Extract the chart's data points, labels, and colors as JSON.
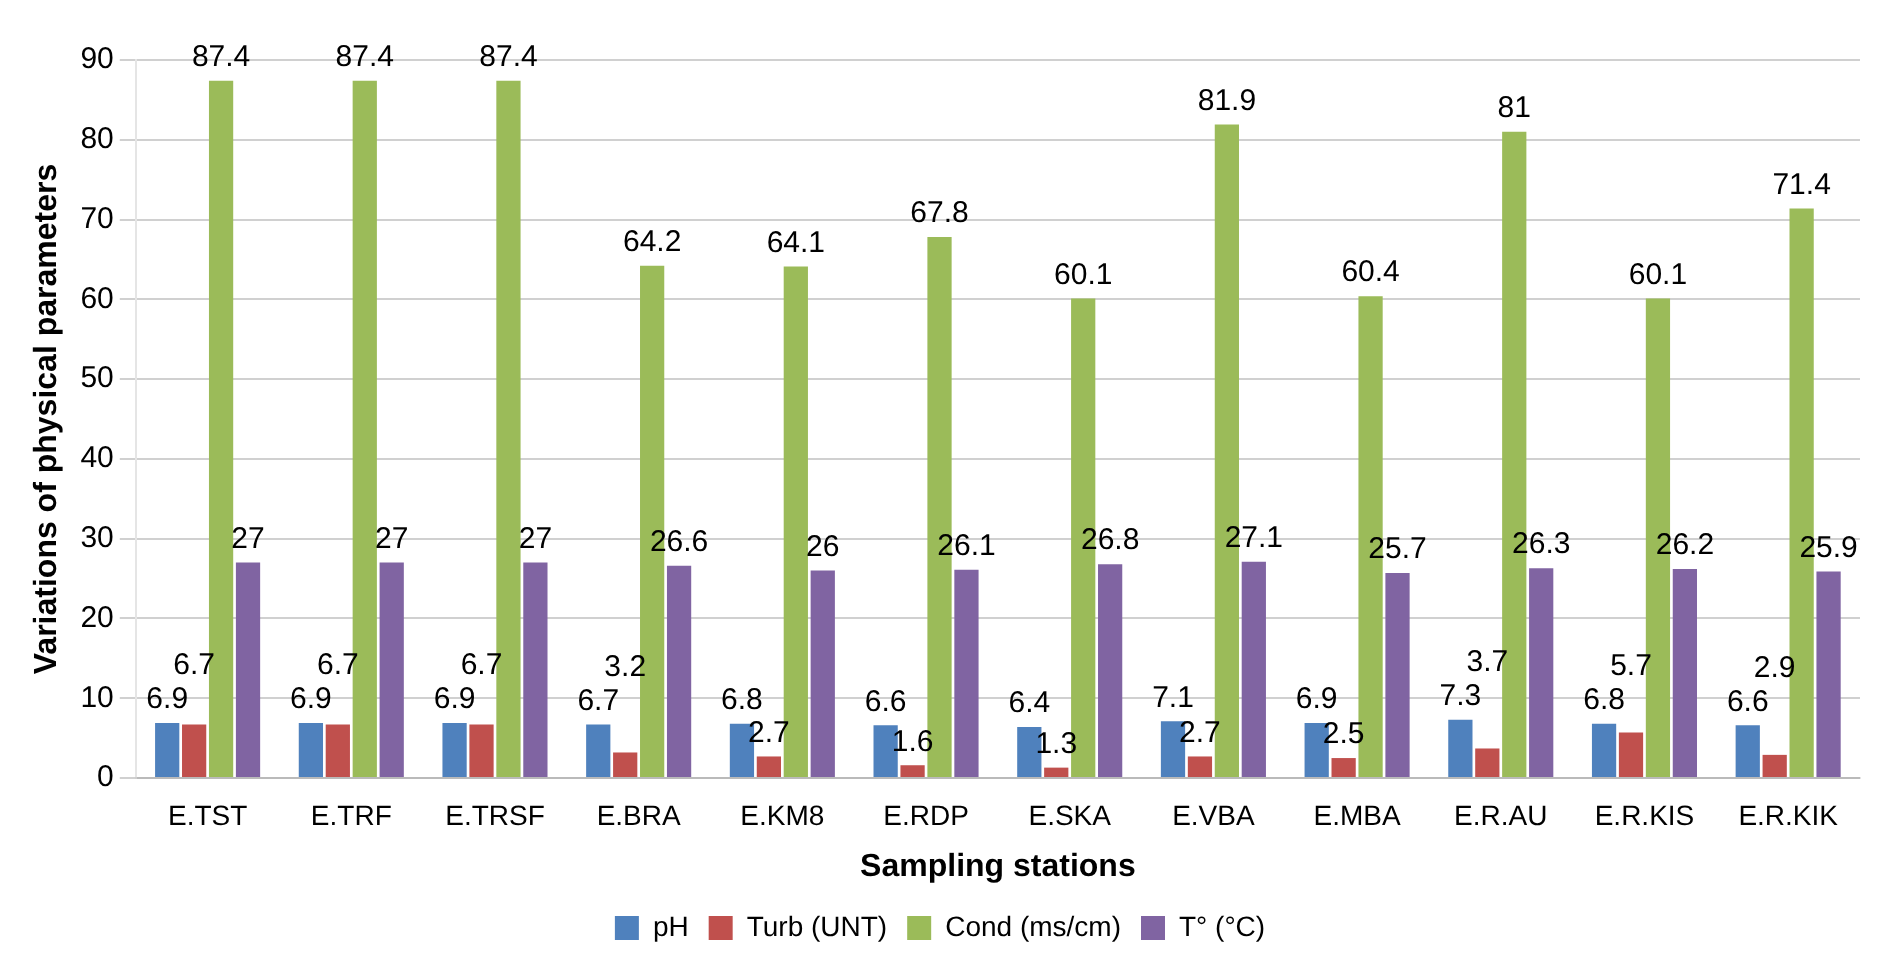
{
  "chart_data": {
    "type": "bar",
    "xlabel": "Sampling stations",
    "ylabel": "Variations of physical parameters",
    "categories": [
      "E.TST",
      "E.TRF",
      "E.TRSF",
      "E.BRA",
      "E.KM8",
      "E.RDP",
      "E.SKA",
      "E.VBA",
      "E.MBA",
      "E.R.AU",
      "E.R.KIS",
      "E.R.KIK"
    ],
    "series": [
      {
        "name": "pH",
        "color": "#4f81bd",
        "values": [
          6.9,
          6.9,
          6.9,
          6.7,
          6.8,
          6.6,
          6.4,
          7.1,
          6.9,
          7.3,
          6.8,
          6.6
        ]
      },
      {
        "name": "Turb (UNT)",
        "color": "#c0504d",
        "values": [
          6.7,
          6.7,
          6.7,
          3.2,
          2.7,
          1.6,
          1.3,
          2.7,
          2.5,
          3.7,
          5.7,
          2.9
        ]
      },
      {
        "name": "Cond (ms/cm)",
        "color": "#9bbb59",
        "values": [
          87.4,
          87.4,
          87.4,
          64.2,
          64.1,
          67.8,
          60.1,
          81.9,
          60.4,
          81,
          60.1,
          71.4
        ]
      },
      {
        "name": "T° (°C)",
        "color": "#8064a2",
        "values": [
          27,
          27,
          27,
          26.6,
          26,
          26.1,
          26.8,
          27.1,
          25.7,
          26.3,
          26.2,
          25.9
        ]
      }
    ],
    "ylim": [
      0,
      90
    ],
    "yticks": [
      0,
      10,
      20,
      30,
      40,
      50,
      60,
      70,
      80,
      90
    ],
    "grid": "y",
    "legend": "bottom",
    "data_labels": true
  }
}
